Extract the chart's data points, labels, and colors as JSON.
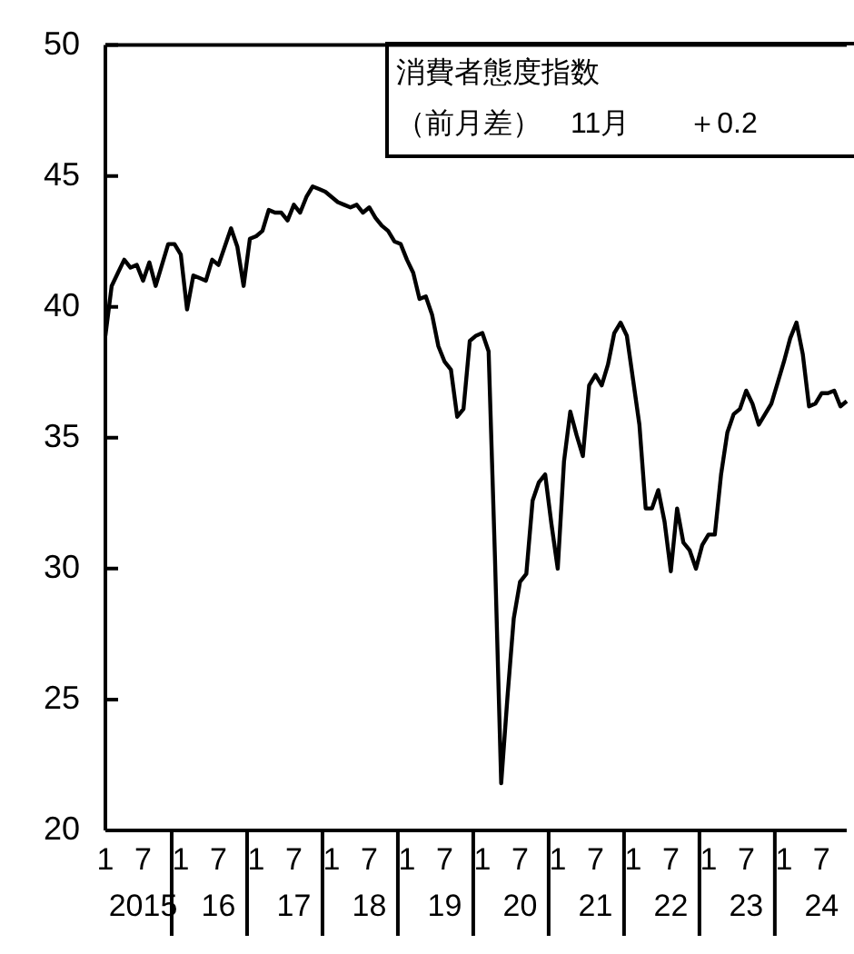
{
  "chart_data": {
    "type": "line",
    "title": "消費者態度指数",
    "annotations": [
      "（前月差）　11月　　＋0.2"
    ],
    "categories": [
      "1",
      null,
      null,
      null,
      null,
      null,
      "7\n2015",
      null,
      null,
      null,
      null,
      null,
      "1",
      null,
      null,
      null,
      null,
      null,
      "7\n16",
      null,
      null,
      null,
      null,
      null,
      "1",
      null,
      null,
      null,
      null,
      null,
      "7\n17",
      null,
      null,
      null,
      null,
      null,
      "1",
      null,
      null,
      null,
      null,
      null,
      "7\n18",
      null,
      null,
      null,
      null,
      null,
      "1",
      null,
      null,
      null,
      null,
      null,
      "7\n19",
      null,
      null,
      null,
      null,
      null,
      "1",
      null,
      null,
      null,
      null,
      null,
      "7\n20",
      null,
      null,
      null,
      null,
      null,
      "1",
      null,
      null,
      null,
      null,
      null,
      "7\n21",
      null,
      null,
      null,
      null,
      null,
      "1",
      null,
      null,
      null,
      null,
      null,
      "7\n22",
      null,
      null,
      null,
      null,
      null,
      "1",
      null,
      null,
      null,
      null,
      null,
      "7\n23",
      null,
      null,
      null,
      null,
      null,
      "1",
      null,
      null,
      null,
      null,
      null,
      "7\n24",
      null,
      null,
      null,
      null
    ],
    "series": [
      {
        "color": "#000000",
        "values": [
          38.9,
          40.8,
          41.3,
          41.8,
          41.5,
          41.6,
          41.0,
          41.7,
          40.8,
          41.6,
          42.4,
          42.4,
          42.0,
          39.9,
          41.2,
          41.1,
          41.0,
          41.8,
          41.6,
          42.3,
          43.0,
          42.3,
          40.8,
          42.6,
          42.7,
          42.9,
          43.7,
          43.6,
          43.6,
          43.3,
          43.9,
          43.6,
          44.2,
          44.6,
          44.5,
          44.4,
          44.2,
          44.0,
          43.9,
          43.8,
          43.9,
          43.6,
          43.8,
          43.4,
          43.1,
          42.9,
          42.5,
          42.4,
          41.8,
          41.3,
          40.3,
          40.4,
          39.7,
          38.5,
          37.9,
          37.6,
          35.8,
          36.1,
          38.7,
          38.9,
          39.0,
          38.3,
          30.5,
          21.8,
          25.1,
          28.1,
          29.5,
          29.8,
          32.6,
          33.3,
          33.6,
          31.7,
          30.0,
          34.1,
          36.0,
          35.1,
          34.3,
          37.0,
          37.4,
          37.0,
          37.8,
          39.0,
          39.4,
          38.9,
          37.2,
          35.5,
          32.3,
          32.3,
          33.0,
          31.8,
          29.9,
          32.3,
          31.0,
          30.7,
          30.0,
          30.9,
          31.3,
          31.3,
          33.6,
          35.2,
          35.9,
          36.1,
          36.8,
          36.3,
          35.5,
          35.9,
          36.3,
          37.1,
          37.9,
          38.8,
          39.4,
          38.2,
          36.2,
          36.3,
          36.7,
          36.7,
          36.8,
          36.2,
          36.4
        ]
      }
    ],
    "ylim": [
      20,
      50
    ],
    "yticks": [
      20,
      25,
      30,
      35,
      40,
      45,
      50
    ],
    "grid": false,
    "legend": false,
    "marker": "none",
    "line_style": "solid"
  }
}
